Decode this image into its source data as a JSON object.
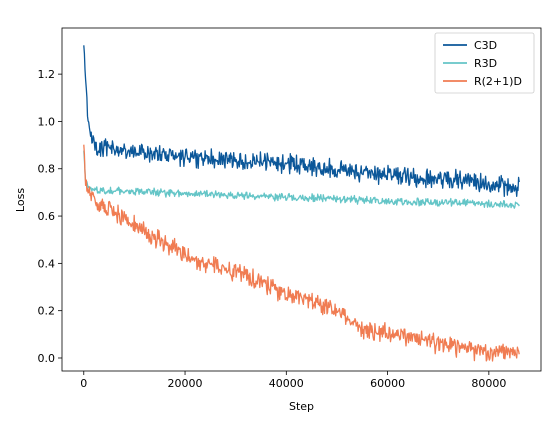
{
  "chart_data": {
    "type": "line",
    "title": "",
    "xlabel": "Step",
    "ylabel": "Loss",
    "xlim": [
      -4300,
      90300
    ],
    "ylim": [
      -0.055,
      1.395
    ],
    "xticks": [
      0,
      20000,
      40000,
      60000,
      80000
    ],
    "xtick_labels": [
      "0",
      "20000",
      "40000",
      "60000",
      "80000"
    ],
    "yticks": [
      0.0,
      0.2,
      0.4,
      0.6,
      0.8,
      1.0,
      1.2
    ],
    "ytick_labels": [
      "0.0",
      "0.2",
      "0.4",
      "0.6",
      "0.8",
      "1.0",
      "1.2"
    ],
    "grid": false,
    "legend_position": "top-right",
    "series": [
      {
        "name": "C3D",
        "color": "#0b5799",
        "x": [
          0,
          300,
          800,
          1500,
          3000,
          5000,
          10000,
          15000,
          20000,
          25000,
          30000,
          35000,
          40000,
          45000,
          50000,
          55000,
          60000,
          65000,
          70000,
          75000,
          80000,
          83000,
          86000
        ],
        "y": [
          1.33,
          1.2,
          1.02,
          0.93,
          0.89,
          0.885,
          0.87,
          0.865,
          0.85,
          0.845,
          0.835,
          0.83,
          0.82,
          0.81,
          0.795,
          0.785,
          0.775,
          0.765,
          0.76,
          0.75,
          0.74,
          0.73,
          0.72
        ],
        "noise": 0.03
      },
      {
        "name": "R3D",
        "color": "#64c5c7",
        "x": [
          0,
          300,
          800,
          1500,
          3000,
          5000,
          10000,
          20000,
          30000,
          40000,
          50000,
          60000,
          70000,
          80000,
          86000
        ],
        "y": [
          0.88,
          0.76,
          0.72,
          0.715,
          0.71,
          0.708,
          0.703,
          0.695,
          0.688,
          0.68,
          0.672,
          0.664,
          0.658,
          0.652,
          0.648
        ],
        "noise": 0.012
      },
      {
        "name": "R(2+1)D",
        "color": "#f07c52",
        "x": [
          0,
          300,
          1000,
          2000,
          5000,
          10000,
          15000,
          20000,
          25000,
          30000,
          35000,
          40000,
          45000,
          50000,
          53000,
          55000,
          60000,
          65000,
          70000,
          75000,
          80000,
          86000
        ],
        "y": [
          0.91,
          0.75,
          0.7,
          0.66,
          0.62,
          0.56,
          0.5,
          0.43,
          0.4,
          0.36,
          0.32,
          0.27,
          0.24,
          0.2,
          0.15,
          0.12,
          0.1,
          0.09,
          0.06,
          0.04,
          0.03,
          0.02
        ],
        "noise": 0.03
      }
    ]
  }
}
